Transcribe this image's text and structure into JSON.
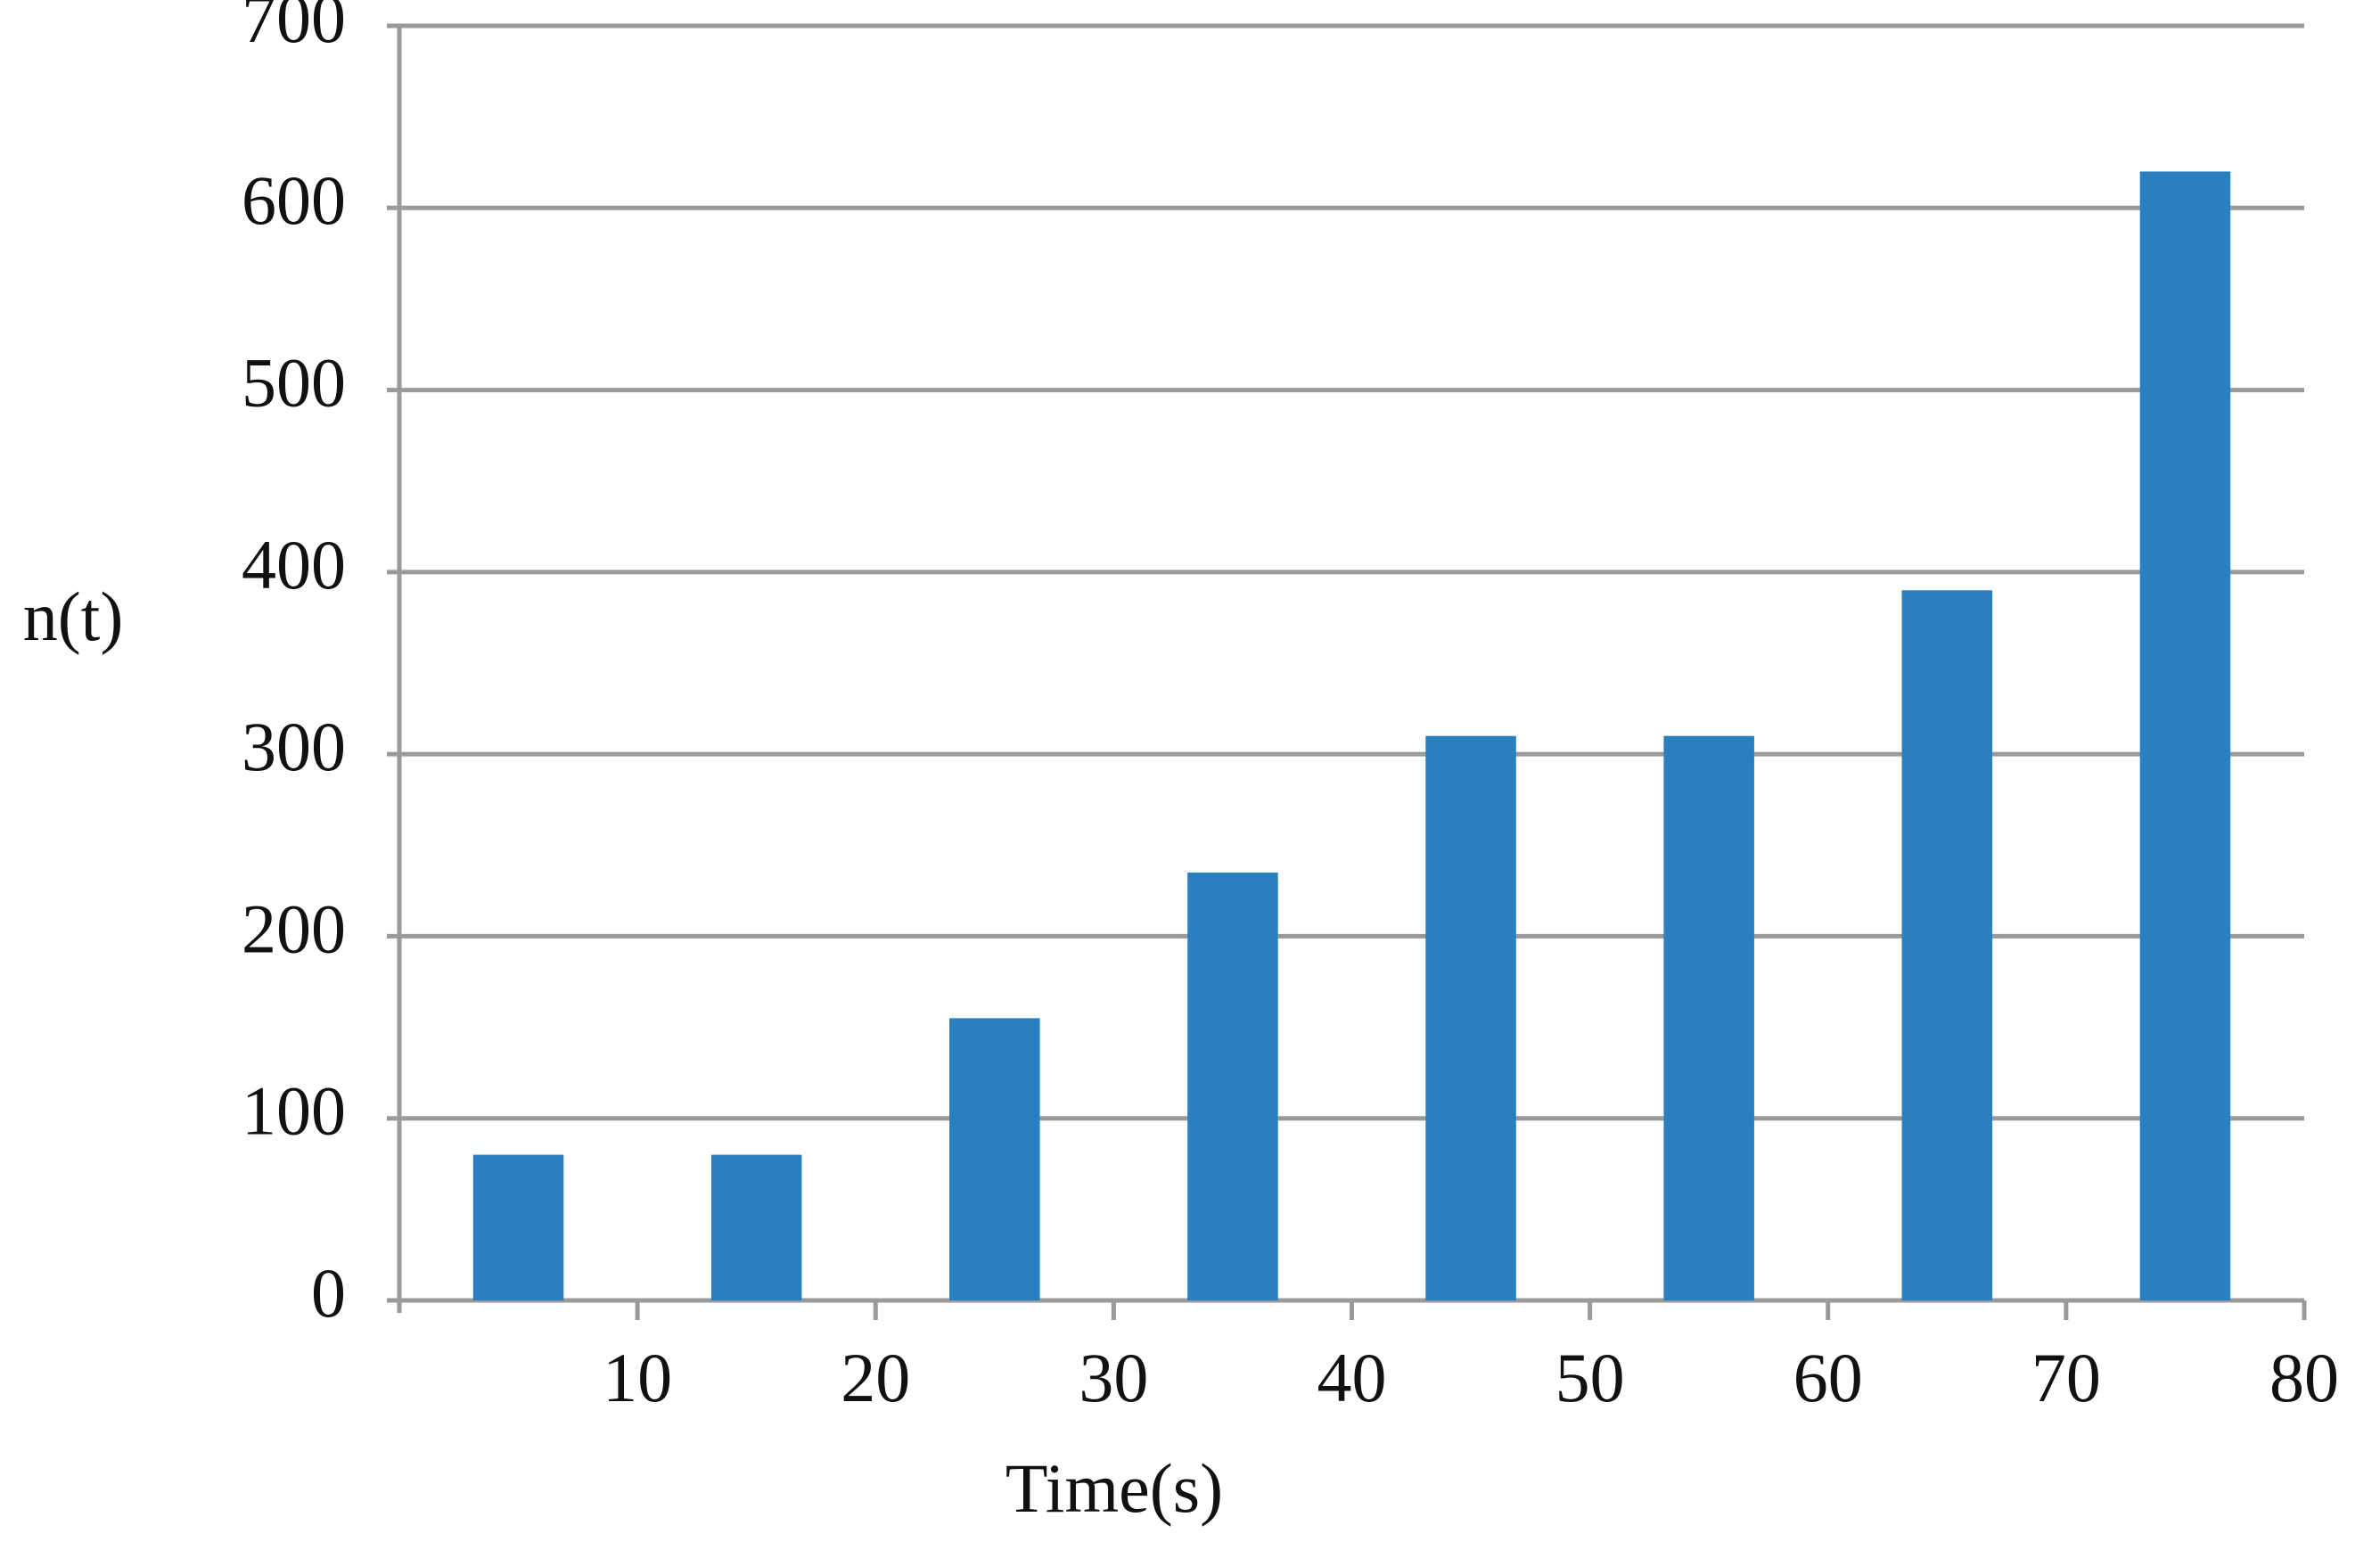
{
  "chart_data": {
    "type": "bar",
    "x_label": "Time(s)",
    "y_label": "n(t)",
    "x": [
      5,
      15,
      25,
      35,
      45,
      55,
      65,
      75
    ],
    "values": [
      80,
      80,
      155,
      235,
      310,
      310,
      390,
      620
    ],
    "color": "#2a7fc1",
    "xlim": [
      0,
      80
    ],
    "xticks": [
      10,
      20,
      30,
      40,
      50,
      60,
      70,
      80
    ],
    "ylim": [
      0,
      700
    ],
    "yticks": [
      0,
      100,
      200,
      300,
      400,
      500,
      600,
      700
    ],
    "grid": true
  }
}
